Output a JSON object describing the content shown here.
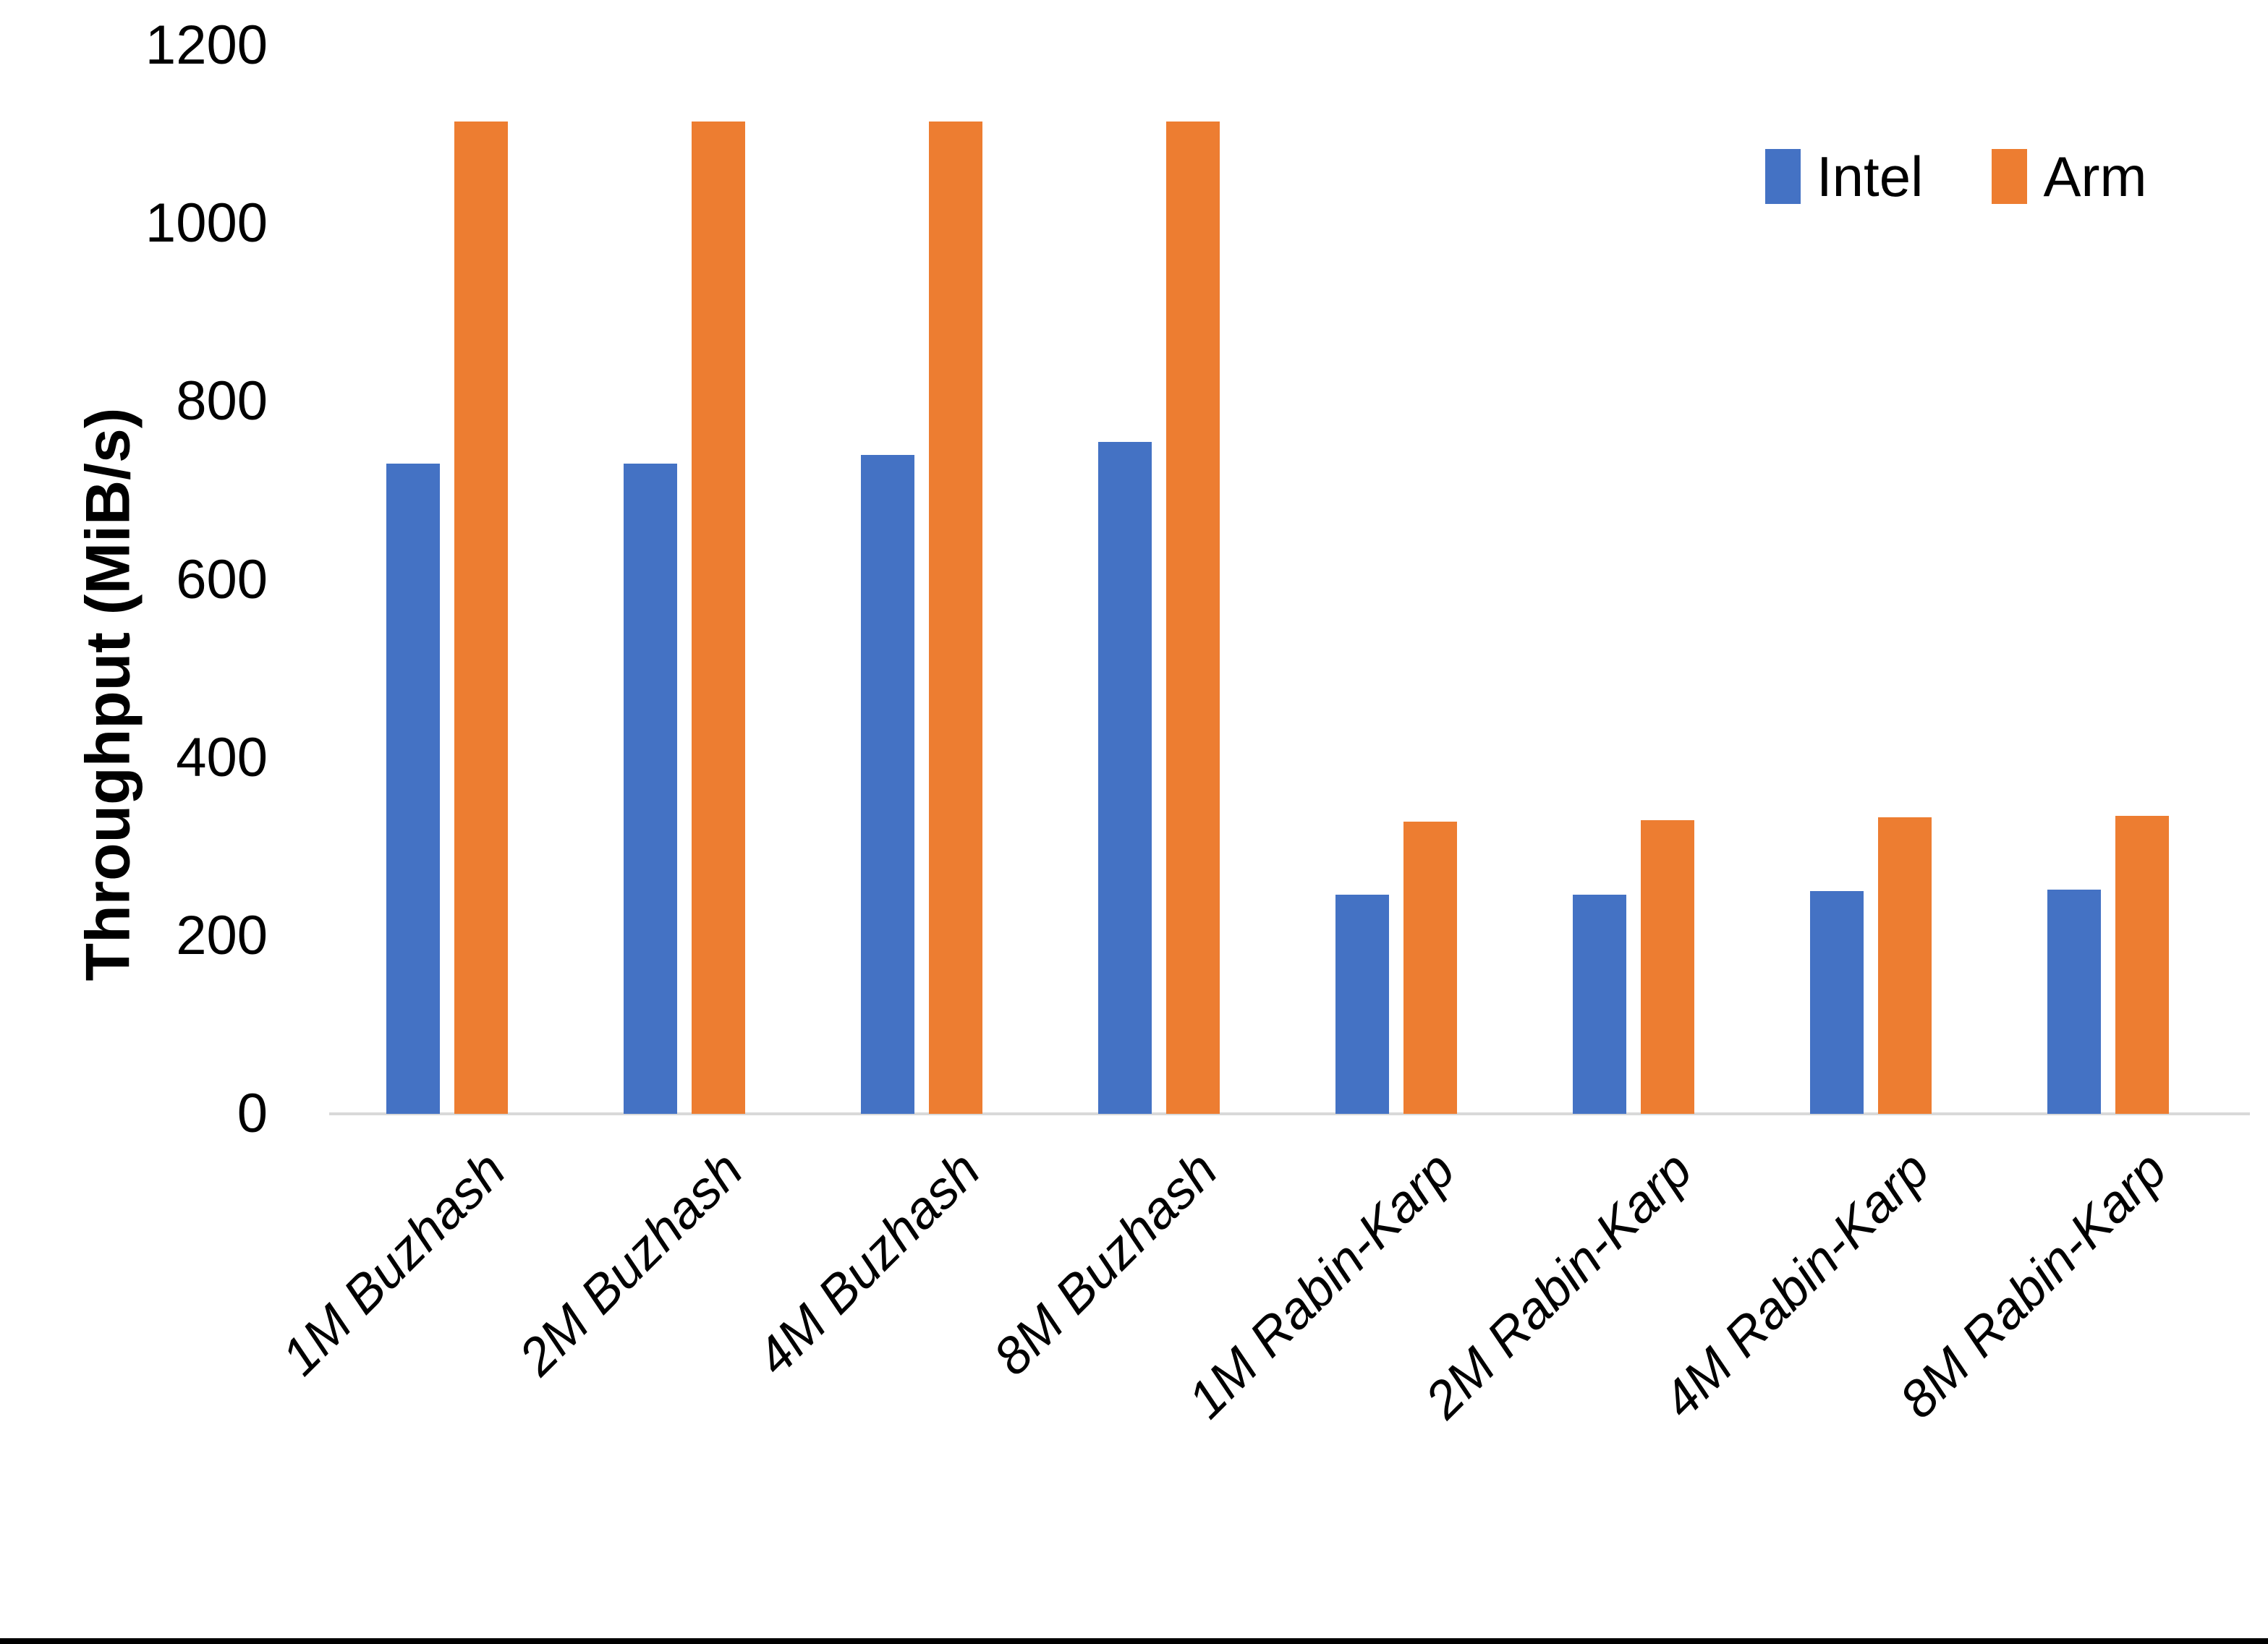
{
  "chart_data": {
    "type": "bar",
    "title": "",
    "xlabel": "",
    "ylabel": "Throughput (MiB/s)",
    "ylim": [
      0,
      1200
    ],
    "yticks": [
      0,
      200,
      400,
      600,
      800,
      1000,
      1200
    ],
    "grid": false,
    "legend_position": "top-right",
    "categories": [
      "1M Buzhash",
      "2M Buzhash",
      "4M Buzhash",
      "8M Buzhash",
      "1M Rabin-Karp",
      "2M Rabin-Karp",
      "4M Rabin-Karp",
      "8M Rabin-Karp"
    ],
    "series": [
      {
        "name": "Intel",
        "color": "#4472C4",
        "values": [
          730,
          730,
          740,
          755,
          246,
          246,
          250,
          252
        ]
      },
      {
        "name": "Arm",
        "color": "#ED7D31",
        "values": [
          1115,
          1115,
          1115,
          1115,
          328,
          330,
          333,
          335
        ]
      }
    ],
    "axis_line_color": "#D9D9D9",
    "bottom_border_color": "#000000"
  }
}
